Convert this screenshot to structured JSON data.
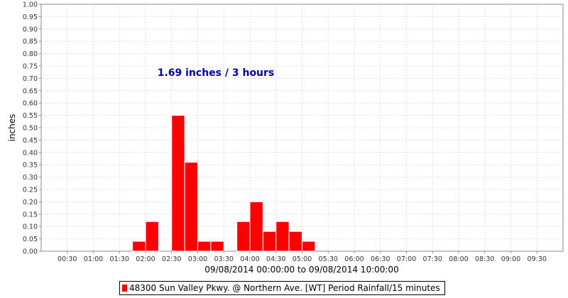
{
  "chart_data": {
    "type": "bar",
    "xlabel": "09/08/2014 00:00:00 to 09/08/2014 10:00:00",
    "ylabel": "inches",
    "ylim": [
      0,
      1.0
    ],
    "y_ticks": [
      "0.00",
      "0.05",
      "0.10",
      "0.15",
      "0.20",
      "0.25",
      "0.30",
      "0.35",
      "0.40",
      "0.45",
      "0.50",
      "0.55",
      "0.60",
      "0.65",
      "0.70",
      "0.75",
      "0.80",
      "0.85",
      "0.90",
      "0.95",
      "1.00"
    ],
    "x_ticks": [
      "00:30",
      "01:00",
      "01:30",
      "02:00",
      "02:30",
      "03:00",
      "03:30",
      "04:00",
      "04:30",
      "05:00",
      "05:30",
      "06:00",
      "06:30",
      "07:00",
      "07:30",
      "08:00",
      "08:30",
      "09:00",
      "09:30"
    ],
    "interval": "15 minutes",
    "grid": true,
    "annotation": "1.69 inches / 3 hours",
    "annotation_color": "#0000aa",
    "bar_color": "#ff0000",
    "series": [
      {
        "name": "48300 Sun Valley Pkwy. @ Northern Ave. [WT] Period Rainfall/15 minutes",
        "x": [
          "01:45",
          "02:00",
          "02:30",
          "02:45",
          "03:00",
          "03:15",
          "03:45",
          "04:00",
          "04:15",
          "04:30",
          "04:45",
          "05:00"
        ],
        "values": [
          0.04,
          0.12,
          0.55,
          0.36,
          0.04,
          0.04,
          0.12,
          0.2,
          0.08,
          0.12,
          0.08,
          0.04
        ]
      }
    ]
  }
}
